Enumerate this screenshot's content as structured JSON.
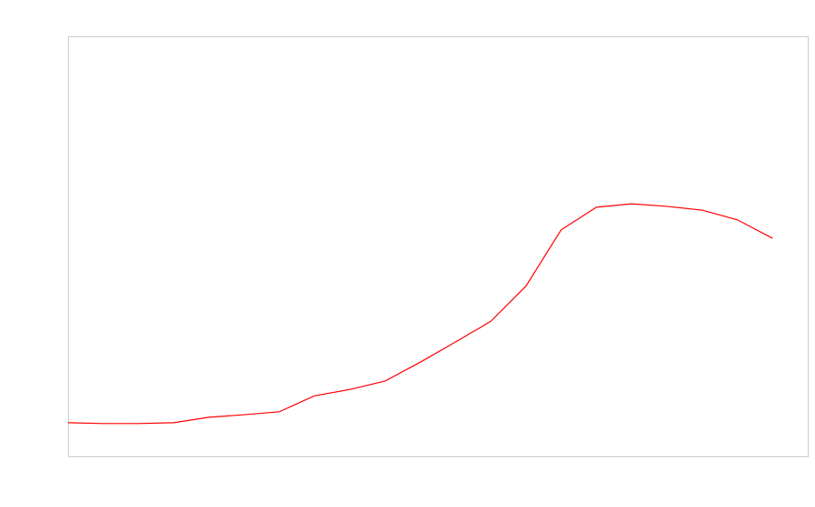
{
  "chart_data": {
    "type": "line",
    "x": [
      0,
      1,
      2,
      3,
      4,
      5,
      6,
      7,
      8,
      9,
      10,
      11,
      12,
      13,
      14,
      15,
      16,
      17,
      18,
      19,
      20
    ],
    "series": [
      {
        "color": "#ff0000",
        "values": [
          8.0,
          7.8,
          7.8,
          8.0,
          9.3,
          9.9,
          10.6,
          14.4,
          15.9,
          17.9,
          22.4,
          27.2,
          32.1,
          40.5,
          53.9,
          59.3,
          60.1,
          59.5,
          58.6,
          56.3,
          51.9
        ]
      }
    ],
    "xlim": [
      0,
      21
    ],
    "ylim": [
      0,
      100
    ],
    "grid": false
  }
}
